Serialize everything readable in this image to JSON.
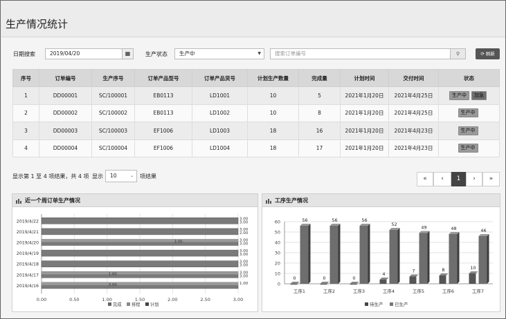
{
  "title": "生产情况统计",
  "filters": {
    "date_label": "日期搜索",
    "date_value": "2019/04/20",
    "status_label": "生产状态",
    "status_value": "生产中",
    "search_placeholder": "搜索订单编号",
    "refresh_label": "刷新"
  },
  "table": {
    "headers": [
      "序号",
      "订单编号",
      "生产序号",
      "订单产品型号",
      "订单产品货号",
      "计划生产数量",
      "完成量",
      "计划时间",
      "交付时间",
      "状态"
    ],
    "rows": [
      {
        "no": "1",
        "order": "DD00001",
        "seq": "SC/100001",
        "model": "EB0113",
        "item": "LD1001",
        "plan": "10",
        "done": "5",
        "plan_time": "2021年1月20日",
        "deliver": "2021年4月25日",
        "status": "生产中",
        "extra": "加急"
      },
      {
        "no": "2",
        "order": "DD00002",
        "seq": "SC/100002",
        "model": "EB0113",
        "item": "LD1002",
        "plan": "10",
        "done": "8",
        "plan_time": "2021年1月20日",
        "deliver": "2021年4月25日",
        "status": "生产中",
        "extra": ""
      },
      {
        "no": "3",
        "order": "DD00003",
        "seq": "SC/100003",
        "model": "EF1006",
        "item": "LD1003",
        "plan": "18",
        "done": "16",
        "plan_time": "2021年1月20日",
        "deliver": "2021年4月23日",
        "status": "生产中",
        "extra": ""
      },
      {
        "no": "4",
        "order": "DD00004",
        "seq": "SC/100004",
        "model": "EF1006",
        "item": "LD1004",
        "plan": "18",
        "done": "17",
        "plan_time": "2021年1月20日",
        "deliver": "2021年4月23日",
        "status": "生产中",
        "extra": ""
      }
    ]
  },
  "paging": {
    "info": "显示第 1 至 4 项结果，共 4 项",
    "show_label": "显示",
    "page_size": "10",
    "suffix": "项结果",
    "buttons": [
      "«",
      "‹",
      "1",
      "›",
      "»"
    ],
    "current": "1"
  },
  "chart_data": [
    {
      "type": "bar",
      "orientation": "horizontal",
      "title": "近一个周订单生产情况",
      "categories": [
        "2019/4/22",
        "2019/4/21",
        "2019/4/20",
        "2019/4/19",
        "2019/4/18",
        "2019/4/17",
        "2019/4/16"
      ],
      "series": [
        {
          "name": "完成",
          "values": [
            3,
            3,
            3,
            3,
            3,
            3,
            3
          ]
        },
        {
          "name": "排程",
          "values": [
            3,
            3,
            2,
            3,
            3,
            1,
            1
          ]
        },
        {
          "name": "计划",
          "values": [
            3,
            3,
            3,
            3,
            3,
            3,
            3
          ]
        }
      ],
      "value_labels": [
        "3.00",
        "3.00",
        "3.00",
        "2.00",
        "3.00",
        "3.00",
        "3.00",
        "3.00",
        "3.00",
        "3.00",
        "3.00",
        "3.00",
        "1.00",
        "3.00",
        "1.00",
        "3.00"
      ],
      "xticks": [
        "0.00",
        "0.50",
        "1.00",
        "1.50",
        "2.00",
        "2.50",
        "3.00"
      ],
      "xlim": [
        0,
        3
      ],
      "legend": [
        "完成",
        "排程",
        "计划"
      ]
    },
    {
      "type": "bar",
      "title": "工序生产情况",
      "categories": [
        "工序1",
        "工序2",
        "工序3",
        "工序4",
        "工序5",
        "工序6",
        "工序7"
      ],
      "series": [
        {
          "name": "待生产",
          "values": [
            0,
            0,
            0,
            4,
            7,
            8,
            10
          ]
        },
        {
          "name": "已生产",
          "values": [
            56,
            56,
            56,
            52,
            49,
            48,
            46
          ]
        }
      ],
      "yticks": [
        "0",
        "10",
        "20",
        "30",
        "40",
        "50",
        "60"
      ],
      "ylim": [
        0,
        60
      ],
      "legend": [
        "待生产",
        "已生产"
      ]
    }
  ]
}
